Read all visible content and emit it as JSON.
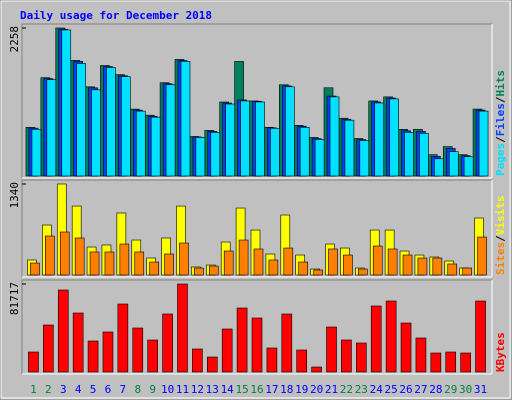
{
  "chart_data": [
    {
      "type": "bar",
      "title": "Daily usage for December 2018",
      "categories": [
        "1",
        "2",
        "3",
        "4",
        "5",
        "6",
        "7",
        "8",
        "9",
        "10",
        "11",
        "12",
        "13",
        "14",
        "15",
        "16",
        "17",
        "18",
        "19",
        "20",
        "21",
        "22",
        "23",
        "24",
        "25",
        "26",
        "27",
        "28",
        "29",
        "30",
        "31"
      ],
      "category_colors": [
        "#008040",
        "#008040",
        "#0000ff",
        "#0000ff",
        "#0000ff",
        "#0000ff",
        "#0000ff",
        "#008040",
        "#008040",
        "#0000ff",
        "#0000ff",
        "#0000ff",
        "#0000ff",
        "#0000ff",
        "#008040",
        "#008040",
        "#0000ff",
        "#0000ff",
        "#0000ff",
        "#0000ff",
        "#0000ff",
        "#008040",
        "#008040",
        "#0000ff",
        "#0000ff",
        "#0000ff",
        "#0000ff",
        "#0000ff",
        "#008040",
        "#008040",
        "#0000ff"
      ],
      "legend_separator": "/",
      "ylim": [
        0,
        2258
      ],
      "yticks": [
        2258
      ],
      "series": [
        {
          "name": "Hits",
          "color": "#00805c",
          "values": [
            742,
            1500,
            2258,
            1764,
            1361,
            1686,
            1547,
            1021,
            928,
            1423,
            1779,
            603,
            696,
            1129,
            1748,
            1145,
            742,
            1392,
            773,
            588,
            1346,
            882,
            572,
            1145,
            1207,
            712,
            712,
            325,
            449,
            325,
            1021
          ]
        },
        {
          "name": "Files",
          "color": "#0040ff",
          "values": [
            730,
            1485,
            2240,
            1750,
            1345,
            1670,
            1530,
            1005,
            912,
            1408,
            1762,
            595,
            682,
            1113,
            1160,
            1140,
            735,
            1375,
            760,
            572,
            1220,
            866,
            556,
            1130,
            1190,
            690,
            680,
            300,
            420,
            310,
            1005
          ]
        },
        {
          "name": "Pages",
          "color": "#00e0ff",
          "values": [
            712,
            1470,
            2228,
            1717,
            1315,
            1655,
            1516,
            990,
            897,
            1392,
            1748,
            588,
            665,
            1098,
            1145,
            1130,
            727,
            1361,
            742,
            557,
            1207,
            851,
            541,
            1114,
            1176,
            665,
            650,
            263,
            371,
            294,
            990
          ]
        }
      ]
    },
    {
      "type": "bar",
      "legend_separator": "/",
      "ylim": [
        0,
        1340
      ],
      "yticks": [
        1340
      ],
      "series": [
        {
          "name": "Visits",
          "color": "#ffff00",
          "values": [
            221,
            736,
            1340,
            1015,
            412,
            442,
            913,
            515,
            250,
            545,
            1015,
            118,
            147,
            486,
            986,
            662,
            309,
            883,
            294,
            88,
            456,
            397,
            103,
            662,
            662,
            353,
            294,
            265,
            206,
            103,
            839
          ]
        },
        {
          "name": "Sites",
          "color": "#ff8000",
          "values": [
            176,
            574,
            633,
            545,
            339,
            339,
            456,
            339,
            191,
            309,
            471,
            103,
            132,
            353,
            515,
            383,
            221,
            397,
            191,
            74,
            383,
            294,
            88,
            427,
            383,
            294,
            250,
            250,
            162,
            103,
            559
          ]
        }
      ]
    },
    {
      "type": "bar",
      "ylim": [
        0,
        81717
      ],
      "yticks": [
        81717
      ],
      "series": [
        {
          "name": "KBytes",
          "color": "#ff0000",
          "values": [
            18572,
            43644,
            76145,
            54787,
            28786,
            37144,
            63145,
            40858,
            29715,
            53859,
            81717,
            21358,
            13929,
            39930,
            59430,
            50144,
            22286,
            53859,
            20429,
            4643,
            41787,
            29715,
            26929,
            61288,
            65931,
            45501,
            31572,
            17643,
            18572,
            17643,
            65931
          ]
        }
      ]
    }
  ]
}
